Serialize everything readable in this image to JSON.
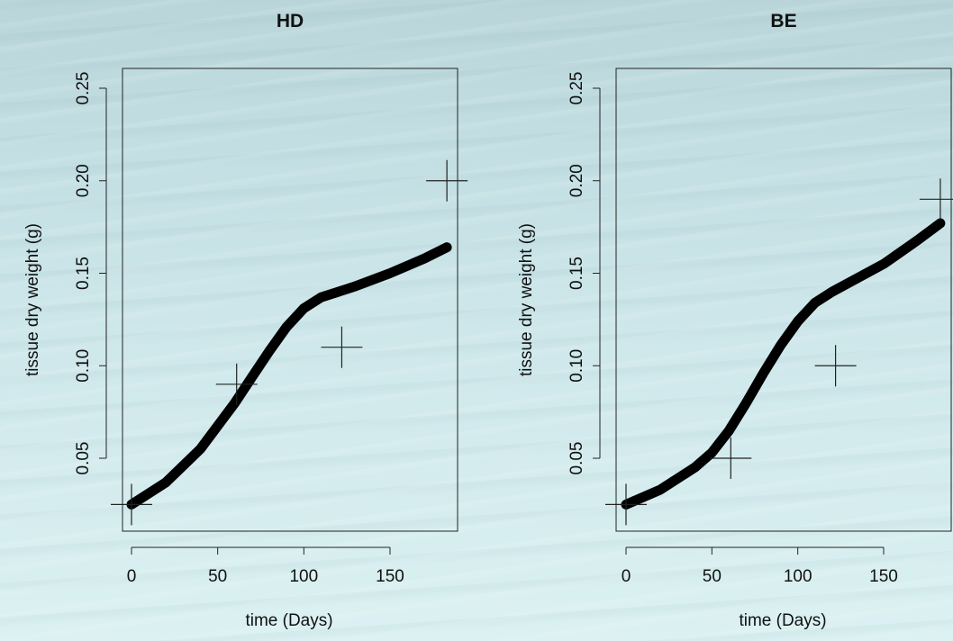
{
  "chart_data": [
    {
      "type": "scatter",
      "title": "HD",
      "xlabel": "time (Days)",
      "ylabel": "tissue dry weight (g)",
      "xlim": [
        0,
        190
      ],
      "ylim": [
        0,
        0.25
      ],
      "x_ticks": [
        0,
        50,
        100,
        150
      ],
      "x_tick_labels": [
        "0",
        "50",
        "100",
        "150"
      ],
      "y_ticks": [
        0.05,
        0.1,
        0.15,
        0.2,
        0.25
      ],
      "y_tick_labels": [
        "0.05",
        "0.10",
        "0.15",
        "0.20",
        "0.25"
      ],
      "series": [
        {
          "kind": "points",
          "marker": "plus",
          "x": [
            0,
            61,
            122,
            183
          ],
          "y": [
            0.025,
            0.09,
            0.11,
            0.2
          ]
        },
        {
          "kind": "line",
          "x": [
            0,
            20,
            40,
            60,
            70,
            80,
            90,
            100,
            110,
            120,
            130,
            150,
            170,
            183
          ],
          "y": [
            0.025,
            0.037,
            0.055,
            0.08,
            0.094,
            0.108,
            0.121,
            0.131,
            0.137,
            0.14,
            0.143,
            0.15,
            0.158,
            0.164
          ]
        }
      ]
    },
    {
      "type": "scatter",
      "title": "BE",
      "xlabel": "time (Days)",
      "ylabel": "tissue dry weight (g)",
      "xlim": [
        0,
        190
      ],
      "ylim": [
        0,
        0.25
      ],
      "x_ticks": [
        0,
        50,
        100,
        150
      ],
      "x_tick_labels": [
        "0",
        "50",
        "100",
        "150"
      ],
      "y_ticks": [
        0.05,
        0.1,
        0.15,
        0.2,
        0.25
      ],
      "y_tick_labels": [
        "0.05",
        "0.10",
        "0.15",
        "0.20",
        "0.25"
      ],
      "series": [
        {
          "kind": "points",
          "marker": "plus",
          "x": [
            0,
            61,
            122,
            183
          ],
          "y": [
            0.025,
            0.05,
            0.1,
            0.19
          ]
        },
        {
          "kind": "line",
          "x": [
            0,
            20,
            40,
            50,
            60,
            70,
            80,
            90,
            100,
            110,
            120,
            150,
            170,
            183
          ],
          "y": [
            0.025,
            0.033,
            0.045,
            0.053,
            0.065,
            0.08,
            0.096,
            0.111,
            0.124,
            0.134,
            0.14,
            0.155,
            0.168,
            0.177
          ]
        }
      ]
    }
  ]
}
